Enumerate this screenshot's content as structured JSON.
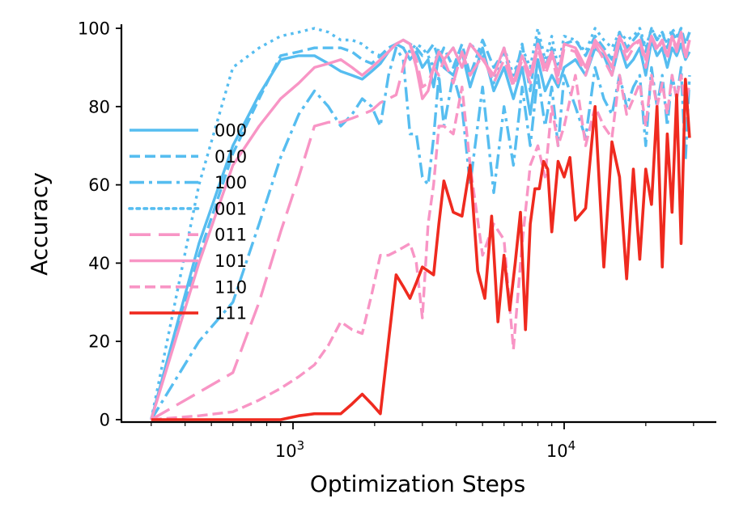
{
  "chart_data": {
    "type": "line",
    "title": "",
    "xlabel": "Optimization Steps",
    "ylabel": "Accuracy",
    "xscale": "log",
    "xlim": [
      250,
      35000
    ],
    "ylim": [
      0,
      100
    ],
    "yticks": [
      0,
      20,
      40,
      60,
      80,
      100
    ],
    "ytick_labels": [
      "0",
      "20",
      "40",
      "60",
      "80",
      "100"
    ],
    "xticks": [
      1000,
      10000
    ],
    "xtick_labels": [
      {
        "base": "10",
        "exp": "3"
      },
      {
        "base": "10",
        "exp": "4"
      }
    ],
    "legend_position": "center-left",
    "series": [
      {
        "name": "000",
        "color": "#56BDF0",
        "dash": "solid",
        "x": [
          300,
          450,
          600,
          750,
          900,
          1050,
          1200,
          1350,
          1500,
          1650,
          1800,
          1950,
          2100,
          2250,
          2400,
          2550,
          2700,
          2850,
          3000,
          3150,
          3300,
          3450,
          3600,
          3900,
          4200,
          4500,
          5000,
          5500,
          6000,
          6500,
          7000,
          7500,
          8000,
          8500,
          9000,
          9500,
          10000,
          11000,
          12000,
          13000,
          14000,
          15000,
          16000,
          17000,
          18000,
          19000,
          20000,
          21000,
          22000,
          23000,
          24000,
          25000,
          26000,
          27000,
          28000,
          29000
        ],
        "y": [
          0,
          45,
          70,
          83,
          92,
          93,
          93,
          91,
          89,
          88,
          87,
          89,
          91,
          94,
          96,
          95,
          92,
          94,
          90,
          92,
          85,
          93,
          90,
          88,
          94,
          85,
          95,
          84,
          90,
          82,
          90,
          78,
          92,
          84,
          88,
          85,
          90,
          92,
          88,
          95,
          93,
          88,
          96,
          90,
          92,
          95,
          88,
          97,
          93,
          95,
          90,
          95,
          93,
          96,
          92,
          94
        ]
      },
      {
        "name": "010",
        "color": "#56BDF0",
        "dash": "dashed",
        "x": [
          300,
          450,
          600,
          750,
          900,
          1050,
          1200,
          1350,
          1500,
          1650,
          1800,
          1950,
          2100,
          2250,
          2400,
          2550,
          2700,
          2850,
          3000,
          3150,
          3300,
          3450,
          3600,
          3900,
          4200,
          4500,
          5000,
          5500,
          6000,
          6500,
          7000,
          7500,
          8000,
          8500,
          9000,
          9500,
          10000,
          11000,
          12000,
          13000,
          14000,
          15000,
          16000,
          17000,
          18000,
          19000,
          20000,
          21000,
          22000,
          23000,
          24000,
          25000,
          26000,
          27000,
          28000,
          29000
        ],
        "y": [
          0,
          42,
          68,
          82,
          93,
          94,
          95,
          95,
          95,
          94,
          92,
          91,
          93,
          95,
          96,
          97,
          96,
          95,
          93,
          94,
          96,
          92,
          95,
          90,
          96,
          88,
          97,
          90,
          94,
          86,
          96,
          84,
          98,
          90,
          95,
          88,
          96,
          97,
          93,
          98,
          95,
          92,
          99,
          95,
          97,
          99,
          94,
          100,
          97,
          99,
          95,
          99,
          97,
          100,
          96,
          99
        ]
      },
      {
        "name": "100",
        "color": "#56BDF0",
        "dash": "dashdot",
        "x": [
          300,
          450,
          600,
          750,
          900,
          1050,
          1200,
          1350,
          1500,
          1650,
          1800,
          1950,
          2100,
          2250,
          2400,
          2550,
          2700,
          2850,
          3000,
          3150,
          3300,
          3450,
          3600,
          3900,
          4200,
          4500,
          5000,
          5500,
          6000,
          6500,
          7000,
          7500,
          8000,
          8500,
          9000,
          9500,
          10000,
          11000,
          12000,
          13000,
          14000,
          15000,
          16000,
          17000,
          18000,
          19000,
          20000,
          21000,
          22000,
          23000,
          24000,
          25000,
          26000,
          27000,
          28000,
          29000
        ],
        "y": [
          0,
          20,
          30,
          50,
          67,
          78,
          84,
          80,
          75,
          78,
          82,
          80,
          75,
          88,
          95,
          92,
          73,
          73,
          62,
          60,
          72,
          88,
          75,
          88,
          80,
          60,
          85,
          58,
          80,
          65,
          85,
          70,
          88,
          75,
          85,
          70,
          88,
          80,
          72,
          90,
          82,
          78,
          88,
          80,
          85,
          88,
          70,
          90,
          80,
          88,
          75,
          88,
          82,
          90,
          66,
          88
        ]
      },
      {
        "name": "001",
        "color": "#56BDF0",
        "dash": "dotted",
        "x": [
          300,
          450,
          600,
          750,
          900,
          1050,
          1200,
          1350,
          1500,
          1650,
          1800,
          1950,
          2100,
          2250,
          2400,
          2550,
          2700,
          2850,
          3000,
          3150,
          3300,
          3450,
          3600,
          3900,
          4200,
          4500,
          5000,
          5500,
          6000,
          6500,
          7000,
          7500,
          8000,
          8500,
          9000,
          9500,
          10000,
          11000,
          12000,
          13000,
          14000,
          15000,
          16000,
          17000,
          18000,
          19000,
          20000,
          21000,
          22000,
          23000,
          24000,
          25000,
          26000,
          27000,
          28000,
          29000
        ],
        "y": [
          0,
          60,
          90,
          95,
          98,
          99,
          100,
          99,
          97,
          97,
          96,
          94,
          93,
          95,
          96,
          95,
          94,
          96,
          95,
          93,
          90,
          95,
          92,
          95,
          90,
          96,
          93,
          86,
          95,
          88,
          95,
          90,
          100,
          92,
          98,
          90,
          98,
          97,
          94,
          100,
          97,
          95,
          99,
          97,
          98,
          100,
          95,
          100,
          97,
          99,
          96,
          100,
          98,
          100,
          96,
          99
        ]
      },
      {
        "name": "011",
        "color": "#F895C5",
        "dash": "longdash",
        "x": [
          300,
          450,
          600,
          750,
          900,
          1050,
          1200,
          1350,
          1500,
          1650,
          1800,
          1950,
          2100,
          2250,
          2400,
          2550,
          2700,
          2850,
          3000,
          3150,
          3300,
          3450,
          3600,
          3900,
          4200,
          4500,
          5000,
          5500,
          6000,
          6500,
          7000,
          7500,
          8000,
          8500,
          9000,
          9500,
          10000,
          11000,
          12000,
          13000,
          14000,
          15000,
          16000,
          17000,
          18000,
          19000,
          20000,
          21000,
          22000,
          23000,
          24000,
          25000,
          26000,
          27000,
          28000,
          29000
        ],
        "y": [
          0,
          7,
          12,
          30,
          48,
          62,
          75,
          76,
          76,
          77,
          78,
          79,
          81,
          82,
          83,
          90,
          96,
          92,
          85,
          86,
          90,
          88,
          92,
          86,
          94,
          88,
          93,
          86,
          92,
          85,
          92,
          86,
          95,
          88,
          93,
          86,
          95,
          94,
          88,
          96,
          92,
          88,
          97,
          92,
          95,
          97,
          90,
          98,
          94,
          97,
          92,
          98,
          94,
          99,
          92,
          97
        ]
      },
      {
        "name": "101",
        "color": "#F895C5",
        "dash": "solid",
        "x": [
          300,
          450,
          600,
          750,
          900,
          1050,
          1200,
          1350,
          1500,
          1650,
          1800,
          1950,
          2100,
          2250,
          2400,
          2550,
          2700,
          2850,
          3000,
          3150,
          3300,
          3450,
          3600,
          3900,
          4200,
          4500,
          5000,
          5500,
          6000,
          6500,
          7000,
          7500,
          8000,
          8500,
          9000,
          9500,
          10000,
          11000,
          12000,
          13000,
          14000,
          15000,
          16000,
          17000,
          18000,
          19000,
          20000,
          21000,
          22000,
          23000,
          24000,
          25000,
          26000,
          27000,
          28000,
          29000
        ],
        "y": [
          0,
          40,
          65,
          75,
          82,
          86,
          90,
          91,
          92,
          90,
          88,
          90,
          92,
          94,
          96,
          97,
          96,
          90,
          82,
          84,
          90,
          94,
          92,
          95,
          90,
          96,
          92,
          88,
          95,
          86,
          93,
          88,
          96,
          90,
          94,
          88,
          96,
          95,
          90,
          97,
          94,
          90,
          98,
          94,
          96,
          97,
          92,
          98,
          95,
          97,
          93,
          98,
          95,
          99,
          93,
          97
        ]
      },
      {
        "name": "110",
        "color": "#F895C5",
        "dash": "dashed",
        "x": [
          300,
          450,
          600,
          750,
          900,
          1050,
          1200,
          1350,
          1500,
          1650,
          1800,
          1950,
          2100,
          2250,
          2400,
          2550,
          2700,
          2850,
          3000,
          3150,
          3300,
          3450,
          3600,
          3900,
          4200,
          4500,
          5000,
          5500,
          6000,
          6500,
          7000,
          7500,
          8000,
          8500,
          9000,
          9500,
          10000,
          11000,
          12000,
          13000,
          14000,
          15000,
          16000,
          17000,
          18000,
          19000,
          20000,
          21000,
          22000,
          23000,
          24000,
          25000,
          26000,
          27000,
          28000,
          29000
        ],
        "y": [
          0,
          1,
          2,
          5,
          8,
          11,
          14,
          19,
          25,
          23,
          22,
          32,
          42,
          42,
          43,
          44,
          45,
          40,
          26,
          50,
          60,
          75,
          75,
          73,
          85,
          65,
          42,
          50,
          46,
          18,
          45,
          65,
          70,
          62,
          80,
          70,
          75,
          88,
          70,
          80,
          75,
          72,
          88,
          78,
          82,
          86,
          75,
          88,
          80,
          86,
          78,
          88,
          82,
          88,
          80,
          86
        ]
      },
      {
        "name": "111",
        "color": "#EF2A1F",
        "dash": "solid",
        "x": [
          300,
          450,
          600,
          750,
          900,
          1050,
          1200,
          1350,
          1500,
          1650,
          1800,
          1950,
          2100,
          2250,
          2400,
          2550,
          2700,
          2850,
          3000,
          3150,
          3300,
          3450,
          3600,
          3900,
          4200,
          4500,
          4800,
          5100,
          5400,
          5700,
          6000,
          6300,
          6600,
          6900,
          7200,
          7500,
          7800,
          8100,
          8400,
          8700,
          9000,
          9500,
          10000,
          10500,
          11000,
          12000,
          13000,
          14000,
          15000,
          16000,
          17000,
          18000,
          19000,
          20000,
          21000,
          22000,
          23000,
          24000,
          25000,
          26000,
          27000,
          28000,
          29000
        ],
        "y": [
          0,
          0,
          0,
          0,
          0,
          1,
          1.5,
          1.5,
          1.5,
          4,
          6.5,
          4,
          1.5,
          20,
          37,
          34,
          31,
          35,
          39,
          38,
          37,
          50,
          61,
          53,
          52,
          65,
          38,
          31,
          52,
          25,
          42,
          28,
          40,
          53,
          23,
          50,
          59,
          59,
          66,
          64,
          48,
          66,
          62,
          67,
          51,
          54,
          80,
          39,
          71,
          62,
          36,
          64,
          41,
          64,
          55,
          80,
          39,
          73,
          53,
          83,
          45,
          87,
          72
        ]
      }
    ]
  }
}
